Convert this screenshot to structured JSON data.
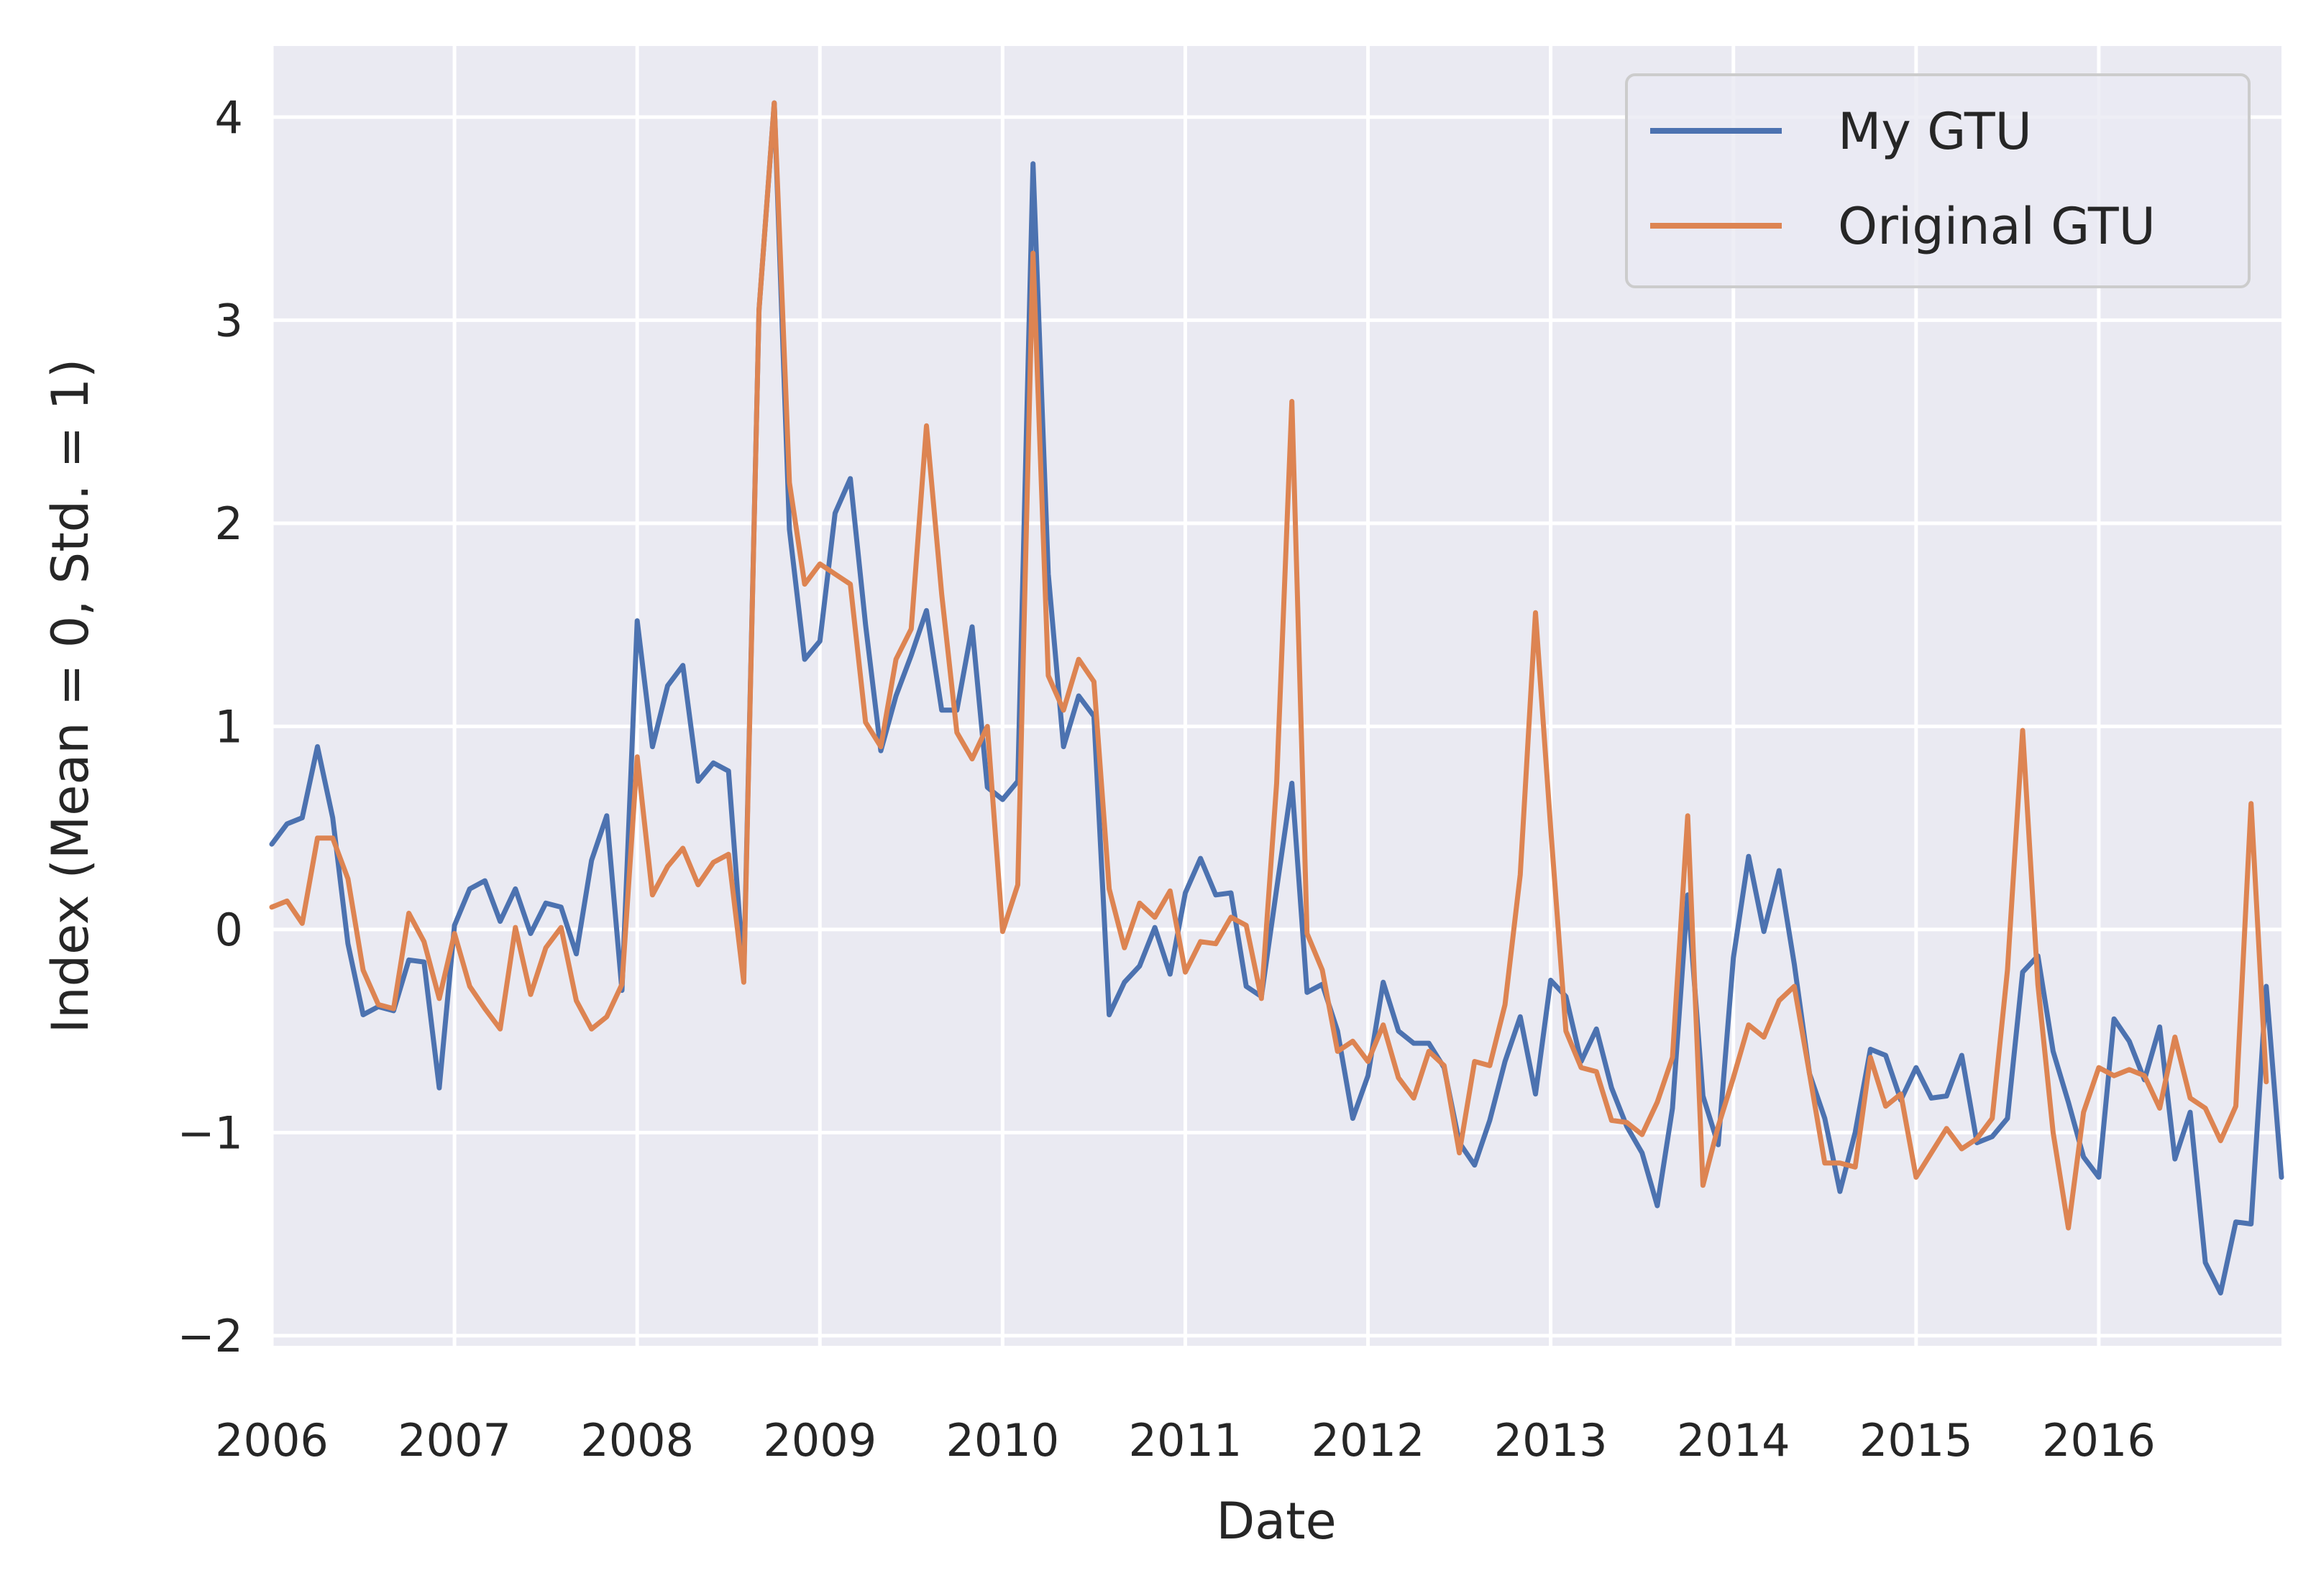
{
  "chart_data": {
    "type": "line",
    "xlabel": "Date",
    "ylabel": "Index (Mean = 0, Std. = 1)",
    "title": "",
    "x_start": "2006-01",
    "x_frequency": "monthly",
    "xlim": [
      "2006-01",
      "2016-12"
    ],
    "ylim": [
      -2.05,
      4.35
    ],
    "x_ticks": [
      "2006",
      "2007",
      "2008",
      "2009",
      "2010",
      "2011",
      "2012",
      "2013",
      "2014",
      "2015",
      "2016"
    ],
    "y_ticks": [
      -2,
      -1,
      0,
      1,
      2,
      3,
      4
    ],
    "y_tick_labels": [
      "−2",
      "−1",
      "0",
      "1",
      "2",
      "3",
      "4"
    ],
    "grid": true,
    "legend_position": "top-right",
    "series": [
      {
        "name": "My GTU",
        "color": "#4c72b0",
        "values": [
          0.42,
          0.52,
          0.55,
          0.9,
          0.55,
          -0.07,
          -0.42,
          -0.38,
          -0.4,
          -0.15,
          -0.16,
          -0.78,
          0.02,
          0.2,
          0.24,
          0.04,
          0.2,
          -0.02,
          0.13,
          0.11,
          -0.12,
          0.34,
          0.56,
          -0.3,
          1.52,
          0.9,
          1.2,
          1.3,
          0.73,
          0.82,
          0.78,
          -0.22,
          3.05,
          4.07,
          1.97,
          1.33,
          1.42,
          2.05,
          2.22,
          1.5,
          0.88,
          1.15,
          1.35,
          1.57,
          1.08,
          1.08,
          1.49,
          0.7,
          0.64,
          0.73,
          3.77,
          1.75,
          0.9,
          1.15,
          1.05,
          -0.42,
          -0.26,
          -0.18,
          0.01,
          -0.22,
          0.18,
          0.35,
          0.17,
          0.18,
          -0.28,
          -0.33,
          0.2,
          0.72,
          -0.31,
          -0.27,
          -0.5,
          -0.93,
          -0.72,
          -0.26,
          -0.5,
          -0.56,
          -0.56,
          -0.68,
          -1.05,
          -1.16,
          -0.94,
          -0.65,
          -0.43,
          -0.81,
          -0.25,
          -0.33,
          -0.65,
          -0.49,
          -0.78,
          -0.97,
          -1.1,
          -1.36,
          -0.88,
          0.17,
          -0.82,
          -1.06,
          -0.14,
          0.36,
          -0.01,
          0.29,
          -0.17,
          -0.71,
          -0.93,
          -1.29,
          -1.0,
          -0.59,
          -0.62,
          -0.84,
          -0.68,
          -0.83,
          -0.82,
          -0.62,
          -1.05,
          -1.02,
          -0.93,
          -0.21,
          -0.13,
          -0.6,
          -0.85,
          -1.12,
          -1.22,
          -0.44,
          -0.55,
          -0.74,
          -0.48,
          -1.13,
          -0.9,
          -1.64,
          -1.79,
          -1.44,
          -1.45,
          -0.28,
          -1.22
        ]
      },
      {
        "name": "Original GTU",
        "color": "#dd8452",
        "values": [
          0.11,
          0.14,
          0.03,
          0.45,
          0.45,
          0.25,
          -0.2,
          -0.37,
          -0.39,
          0.08,
          -0.06,
          -0.34,
          -0.02,
          -0.28,
          -0.39,
          -0.49,
          0.01,
          -0.32,
          -0.09,
          0.01,
          -0.35,
          -0.49,
          -0.43,
          -0.27,
          0.85,
          0.17,
          0.31,
          0.4,
          0.22,
          0.33,
          0.37,
          -0.26,
          3.05,
          4.07,
          2.2,
          1.7,
          1.8,
          1.75,
          1.7,
          1.02,
          0.9,
          1.33,
          1.48,
          2.48,
          1.65,
          0.97,
          0.84,
          1.0,
          -0.01,
          0.22,
          3.33,
          1.25,
          1.08,
          1.33,
          1.22,
          0.2,
          -0.09,
          0.13,
          0.06,
          0.19,
          -0.21,
          -0.06,
          -0.07,
          0.06,
          0.02,
          -0.34,
          0.72,
          2.6,
          -0.02,
          -0.2,
          -0.6,
          -0.55,
          -0.65,
          -0.47,
          -0.73,
          -0.83,
          -0.6,
          -0.67,
          -1.1,
          -0.65,
          -0.67,
          -0.37,
          0.27,
          1.56,
          0.5,
          -0.5,
          -0.68,
          -0.7,
          -0.94,
          -0.95,
          -1.01,
          -0.85,
          -0.63,
          0.56,
          -1.26,
          -0.97,
          -0.73,
          -0.47,
          -0.53,
          -0.35,
          -0.28,
          -0.71,
          -1.15,
          -1.15,
          -1.17,
          -0.63,
          -0.87,
          -0.81,
          -1.22,
          -1.1,
          -0.98,
          -1.08,
          -1.03,
          -0.93,
          -0.2,
          0.98,
          -0.27,
          -1.0,
          -1.47,
          -0.9,
          -0.68,
          -0.72,
          -0.69,
          -0.72,
          -0.88,
          -0.53,
          -0.83,
          -0.88,
          -1.04,
          -0.87,
          0.62,
          -0.75
        ]
      }
    ]
  }
}
